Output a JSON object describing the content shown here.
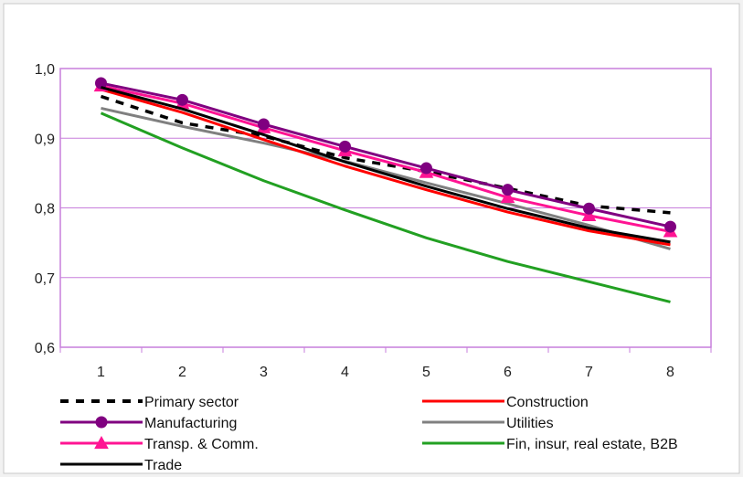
{
  "chart_data": {
    "type": "line",
    "title": "",
    "xlabel": "",
    "ylabel": "",
    "x": [
      1,
      2,
      3,
      4,
      5,
      6,
      7,
      8
    ],
    "xtick_labels": [
      "1",
      "2",
      "3",
      "4",
      "5",
      "6",
      "7",
      "8"
    ],
    "ylim": [
      0.6,
      1.0
    ],
    "yticks": [
      0.6,
      0.7,
      0.8,
      0.9,
      1.0
    ],
    "ytick_labels": [
      "0,6",
      "0,7",
      "0,8",
      "0,9",
      "1,0"
    ],
    "grid": true,
    "legend_position": "bottom",
    "series": [
      {
        "name": "Primary sector",
        "color": "#000000",
        "dash": "dashed",
        "marker": "none",
        "values": [
          0.96,
          0.922,
          0.903,
          0.872,
          0.852,
          0.828,
          0.803,
          0.793
        ]
      },
      {
        "name": "Construction",
        "color": "#ff0000",
        "dash": "solid",
        "marker": "none",
        "values": [
          0.97,
          0.937,
          0.898,
          0.86,
          0.826,
          0.794,
          0.767,
          0.747
        ]
      },
      {
        "name": "Manufacturing",
        "color": "#800080",
        "dash": "solid",
        "marker": "circle",
        "values": [
          0.979,
          0.955,
          0.92,
          0.888,
          0.857,
          0.826,
          0.799,
          0.773
        ]
      },
      {
        "name": "Utilities",
        "color": "#808080",
        "dash": "solid",
        "marker": "none",
        "values": [
          0.943,
          0.917,
          0.893,
          0.867,
          0.836,
          0.806,
          0.775,
          0.741
        ]
      },
      {
        "name": "Transp. & Comm.",
        "color": "#ff1493",
        "dash": "solid",
        "marker": "triangle",
        "values": [
          0.975,
          0.95,
          0.915,
          0.882,
          0.851,
          0.815,
          0.789,
          0.766
        ]
      },
      {
        "name": "Fin, insur, real estate, B2B",
        "color": "#22a022",
        "dash": "solid",
        "marker": "none",
        "values": [
          0.936,
          0.886,
          0.839,
          0.797,
          0.757,
          0.723,
          0.694,
          0.665
        ]
      },
      {
        "name": "Trade",
        "color": "#000000",
        "dash": "solid",
        "marker": "none",
        "values": [
          0.973,
          0.942,
          0.905,
          0.866,
          0.831,
          0.799,
          0.771,
          0.751
        ]
      }
    ]
  }
}
